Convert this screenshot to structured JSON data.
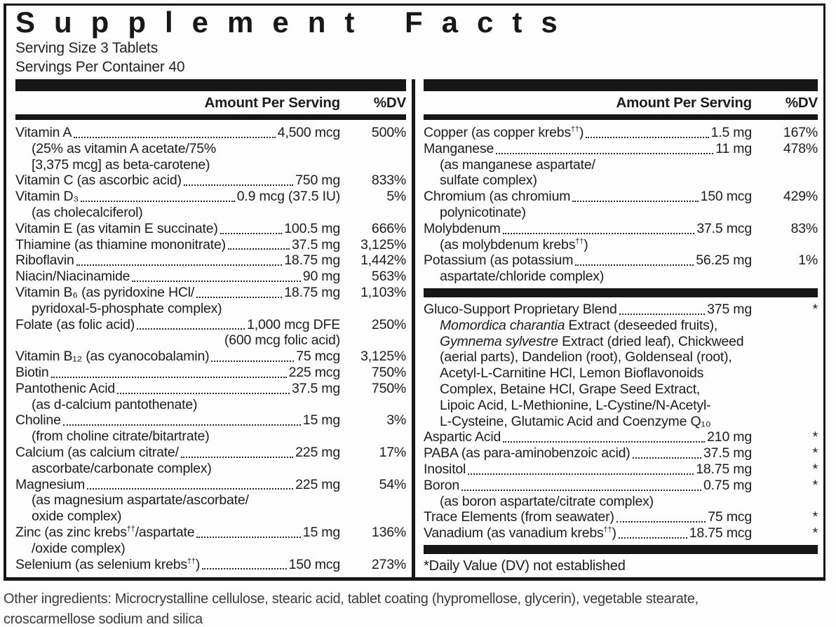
{
  "title": "Supplement Facts",
  "serving_size": "Serving Size 3 Tablets",
  "servings_per_container": "Servings Per Container 40",
  "column_header": {
    "amount": "Amount Per Serving",
    "dv": "%DV"
  },
  "colors": {
    "bar": "#161616",
    "text": "#1c1c1c"
  },
  "left_rows": [
    {
      "name": "Vitamin A",
      "amount": "4,500 mcg",
      "dv": "500%",
      "subs": [
        "(25% as vitamin A acetate/75%",
        "[3,375 mcg] as beta-carotene)"
      ]
    },
    {
      "name": "Vitamin C (as ascorbic acid)",
      "amount": "750 mg",
      "dv": "833%"
    },
    {
      "name": "Vitamin D₃",
      "amount": "0.9 mcg (37.5 IU)",
      "dv": "5%",
      "subs": [
        "(as cholecalciferol)"
      ]
    },
    {
      "name": "Vitamin E (as vitamin E succinate)",
      "amount": "100.5 mg",
      "dv": "666%"
    },
    {
      "name": "Thiamine (as thiamine mononitrate)",
      "amount": "37.5 mg",
      "dv": "3,125%"
    },
    {
      "name": "Riboflavin",
      "amount": "18.75 mg",
      "dv": "1,442%"
    },
    {
      "name": "Niacin/Niacinamide",
      "amount": "90 mg",
      "dv": "563%"
    },
    {
      "name": "Vitamin B₆ (as pyridoxine HCl/",
      "amount": "18.75 mg",
      "dv": "1,103%",
      "subs": [
        "pyridoxal-5-phosphate complex)"
      ]
    },
    {
      "name": "Folate (as folic acid)",
      "amount": "1,000 mcg DFE",
      "dv": "250%",
      "right_sub": "(600 mcg folic acid)"
    },
    {
      "name": "Vitamin B₁₂ (as cyanocobalamin)",
      "amount": "75 mcg",
      "dv": "3,125%"
    },
    {
      "name": "Biotin",
      "amount": "225 mcg",
      "dv": "750%"
    },
    {
      "name": "Pantothenic Acid",
      "amount": "37.5 mg",
      "dv": "750%",
      "subs": [
        "(as d-calcium pantothenate)"
      ]
    },
    {
      "name": "Choline",
      "amount": "15 mg",
      "dv": "3%",
      "subs": [
        "(from choline citrate/bitartrate)"
      ]
    },
    {
      "name": "Calcium (as calcium citrate/",
      "amount": "225 mg",
      "dv": "17%",
      "subs": [
        "ascorbate/carbonate complex)"
      ]
    },
    {
      "name": "Magnesium",
      "amount": "225 mg",
      "dv": "54%",
      "subs": [
        "(as magnesium aspartate/ascorbate/",
        "oxide complex)"
      ]
    },
    {
      "name": "Zinc (as zinc krebs††/aspartate",
      "amount": "15 mg",
      "dv": "136%",
      "subs": [
        "/oxide complex)"
      ]
    },
    {
      "name": "Selenium (as selenium krebs††)",
      "amount": "150 mcg",
      "dv": "273%"
    }
  ],
  "right_rows": [
    {
      "name": "Copper (as copper krebs††)",
      "amount": "1.5 mg",
      "dv": "167%"
    },
    {
      "name": "Manganese",
      "amount": "11 mg",
      "dv": "478%",
      "subs": [
        "(as manganese aspartate/",
        "sulfate complex)"
      ]
    },
    {
      "name": "Chromium (as chromium",
      "amount": "150 mcg",
      "dv": "429%",
      "subs": [
        "polynicotinate)"
      ]
    },
    {
      "name": "Molybdenum",
      "amount": "37.5 mcg",
      "dv": "83%",
      "subs": [
        "(as molybdenum krebs††)"
      ]
    },
    {
      "name": "Potassium (as potassium",
      "amount": "56.25 mg",
      "dv": "1%",
      "subs": [
        "aspartate/chloride complex)"
      ]
    },
    {
      "type": "bar"
    },
    {
      "name": "Gluco-Support Proprietary Blend",
      "amount": "375 mg",
      "dv": "*",
      "subs": [
        {
          "segments": [
            {
              "text": "Momordica charantia",
              "italic": true
            },
            {
              "text": " Extract (deseeded fruits),"
            }
          ]
        },
        {
          "segments": [
            {
              "text": "Gymnema sylvestre",
              "italic": true
            },
            {
              "text": " Extract (dried leaf), Chickweed"
            }
          ]
        },
        "(aerial parts), Dandelion (root), Goldenseal (root),",
        "Acetyl-L-Carnitine HCl, Lemon Bioflavonoids",
        "Complex, Betaine HCl, Grape Seed Extract,",
        "Lipoic Acid, L-Methionine, L-Cystine/N-Acetyl-",
        "L-Cysteine, Glutamic Acid and Coenzyme Q₁₀"
      ]
    },
    {
      "name": "Aspartic Acid",
      "amount": "210 mg",
      "dv": "*"
    },
    {
      "name": "PABA (as para-aminobenzoic acid)",
      "amount": "37.5 mg",
      "dv": "*"
    },
    {
      "name": "Inositol",
      "amount": "18.75 mg",
      "dv": "*"
    },
    {
      "name": "Boron",
      "amount": "0.75 mg",
      "dv": "*",
      "subs": [
        "(as boron aspartate/citrate complex)"
      ]
    },
    {
      "name": "Trace Elements (from seawater)",
      "amount": "75 mcg",
      "dv": "*"
    },
    {
      "name": "Vanadium (as vanadium krebs††)",
      "amount": "18.75 mcg",
      "dv": "*"
    },
    {
      "type": "bar"
    },
    {
      "type": "footnote",
      "text": "*Daily Value (DV) not established"
    }
  ],
  "other_ingredients": {
    "line1": "Other ingredients: Microcrystalline cellulose, stearic acid, tablet coating (hypromellose, glycerin), vegetable stearate,",
    "line2": "croscarmellose sodium and silica"
  }
}
